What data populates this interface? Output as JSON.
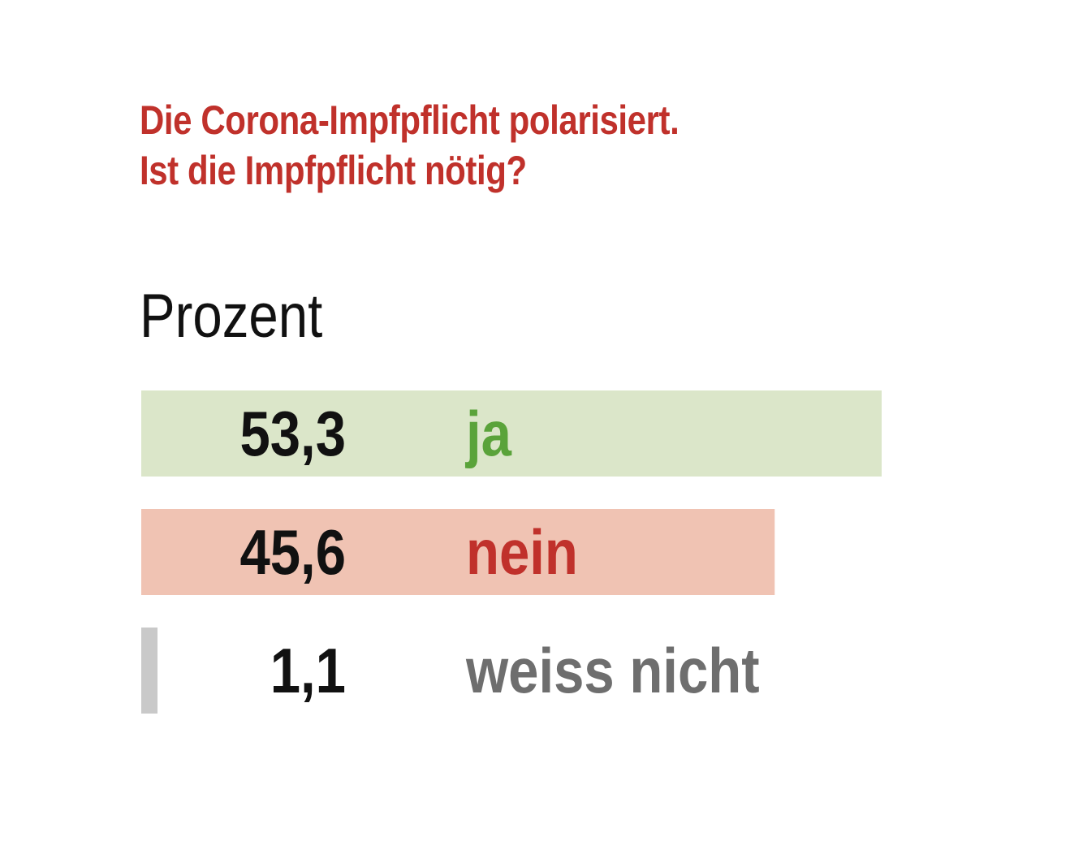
{
  "colors": {
    "title": "#c0312b",
    "value_text": "#111111"
  },
  "title": {
    "line1": "Die Corona-Impfpflicht polarisiert.",
    "line2": "Ist die Impfpflicht nötig?"
  },
  "unit_label": "Prozent",
  "chart_data": {
    "type": "bar",
    "orientation": "horizontal",
    "title": "Die Corona-Impfpflicht polarisiert. Ist die Impfpflicht nötig?",
    "unit": "Prozent",
    "xlim": [
      0,
      53.3
    ],
    "categories": [
      "ja",
      "nein",
      "weiss nicht"
    ],
    "values": [
      53.3,
      45.6,
      1.1
    ],
    "value_labels": [
      "53,3",
      "45,6",
      "1,1"
    ],
    "bar_colors": [
      "#dbe6c9",
      "#f0c3b3",
      "#c9c9c9"
    ],
    "label_colors": [
      "#5aa33a",
      "#c0312b",
      "#6e6e6e"
    ],
    "grid": false,
    "legend": "none"
  }
}
